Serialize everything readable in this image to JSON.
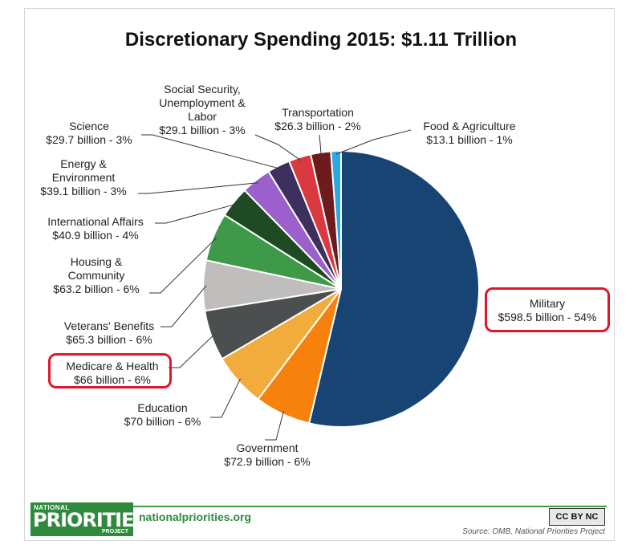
{
  "title": "Discretionary Spending 2015: $1.11 Trillion",
  "chart_data": {
    "type": "pie",
    "title": "Discretionary Spending 2015: $1.11 Trillion",
    "unit": "billion",
    "slices": [
      {
        "name": "Military",
        "value": 598.5,
        "label_value": "$598.5 billion - 54%",
        "color": "#174473",
        "highlighted": true
      },
      {
        "name": "Government",
        "value": 72.9,
        "label_value": "$72.9 billion - 6%",
        "color": "#f6820d",
        "highlighted": false
      },
      {
        "name": "Education",
        "value": 70,
        "label_value": "$70 billion - 6%",
        "color": "#f2ac3c",
        "highlighted": false
      },
      {
        "name": "Medicare & Health",
        "value": 66,
        "label_value": "$66 billion - 6%",
        "color": "#4b4f4f",
        "highlighted": true
      },
      {
        "name": "Veterans' Benefits",
        "value": 65.3,
        "label_value": "$65.3 billion - 6%",
        "color": "#bfbebc",
        "highlighted": false
      },
      {
        "name": "Housing & Community",
        "value": 63.2,
        "label_value": "$63.2 billion - 6%",
        "color": "#3e9a48",
        "highlighted": false
      },
      {
        "name": "International Affairs",
        "value": 40.9,
        "label_value": "$40.9 billion - 4%",
        "color": "#1e4a24",
        "highlighted": false
      },
      {
        "name": "Energy & Environment",
        "value": 39.1,
        "label_value": "$39.1 billion - 3%",
        "color": "#9b60cc",
        "highlighted": false
      },
      {
        "name": "Science",
        "value": 29.7,
        "label_value": "$29.7 billion - 3%",
        "color": "#3d2f5e",
        "highlighted": false
      },
      {
        "name": "Social Security, Unemployment & Labor",
        "value": 29.1,
        "label_value": "$29.1 billion - 3%",
        "color": "#d9393f",
        "highlighted": false
      },
      {
        "name": "Transportation",
        "value": 26.3,
        "label_value": "$26.3 billion - 2%",
        "color": "#6e1b1c",
        "highlighted": false
      },
      {
        "name": "Food & Agriculture",
        "value": 13.1,
        "label_value": "$13.1 billion - 1%",
        "color": "#2aa9e4",
        "highlighted": false
      }
    ]
  },
  "labels": {
    "military": {
      "line1": "Military",
      "line2": "$598.5 billion - 54%"
    },
    "government": {
      "line1": "Government",
      "line2": "$72.9 billion - 6%"
    },
    "education": {
      "line1": "Education",
      "line2": "$70 billion - 6%"
    },
    "medicare": {
      "line1": "Medicare & Health",
      "line2": "$66 billion - 6%"
    },
    "veterans": {
      "line1": "Veterans' Benefits",
      "line2": "$65.3 billion - 6%"
    },
    "housing": {
      "line1": "Housing &",
      "line2": "Community",
      "line3": "$63.2 billion - 6%"
    },
    "intl": {
      "line1": "International Affairs",
      "line2": "$40.9 billion - 4%"
    },
    "energy": {
      "line1": "Energy &",
      "line2": "Environment",
      "line3": "$39.1 billion - 3%"
    },
    "science": {
      "line1": "Science",
      "line2": "$29.7 billion - 3%"
    },
    "social": {
      "line1": "Social Security,",
      "line2": "Unemployment &",
      "line3": "Labor",
      "line4": "$29.1 billion - 3%"
    },
    "transport": {
      "line1": "Transportation",
      "line2": "$26.3 billion - 2%"
    },
    "food": {
      "line1": "Food & Agriculture",
      "line2": "$13.1 billion - 1%"
    }
  },
  "footer": {
    "logo_top": "NATIONAL",
    "logo_main": "PRIORITIES",
    "logo_bottom": "PROJECT",
    "site": "nationalpriorities.org",
    "license": "CC BY NC",
    "source": "Source: OMB, National Priorities Project"
  },
  "colors": {
    "highlight": "#e0162b",
    "brand_green": "#2f8a3d"
  }
}
